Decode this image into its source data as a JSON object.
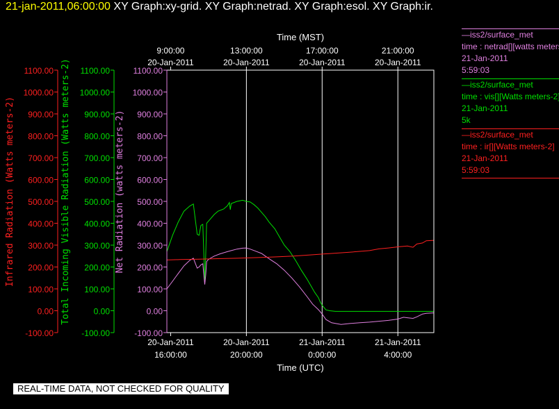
{
  "header": {
    "timestamp": "21-jan-2011,06:00:00",
    "graphs": "XY Graph:xy-grid.  XY Graph:netrad.  XY Graph:esol.  XY Graph:ir."
  },
  "quality_notice": "REAL-TIME DATA, NOT CHECKED FOR QUALITY",
  "legend": [
    {
      "station": "—iss2/surface_met",
      "var": "time : netrad[][watts meters-2]",
      "date": "21-Jan-2011",
      "time": "5:59:03",
      "color": "#e080e0"
    },
    {
      "station": "—iss2/surface_met",
      "var": "time : vis[][Watts meters-2]",
      "date": "21-Jan-2011",
      "time": "5k",
      "color": "#00e000"
    },
    {
      "station": "—iss2/surface_met",
      "var": "time : ir[][Watts meters-2]",
      "date": "21-Jan-2011",
      "time": "5:59:03",
      "color": "#ff2020"
    }
  ],
  "chart_data": {
    "type": "line",
    "x_unit": "hours UTC",
    "xlim": [
      15.8,
      29.9
    ],
    "top_axis": {
      "title": "Time (MST)",
      "ticks": [
        {
          "x": 16,
          "time": "9:00:00",
          "date": "20-Jan-2011"
        },
        {
          "x": 20,
          "time": "13:00:00",
          "date": "20-Jan-2011"
        },
        {
          "x": 24,
          "time": "17:00:00",
          "date": "20-Jan-2011"
        },
        {
          "x": 28,
          "time": "21:00:00",
          "date": "20-Jan-2011"
        }
      ]
    },
    "bottom_axis": {
      "title": "Time (UTC)",
      "ticks": [
        {
          "x": 16,
          "date": "20-Jan-2011",
          "time": "16:00:00"
        },
        {
          "x": 20,
          "date": "20-Jan-2011",
          "time": "20:00:00"
        },
        {
          "x": 24,
          "date": "21-Jan-2011",
          "time": "0:00:00"
        },
        {
          "x": 28,
          "date": "21-Jan-2011",
          "time": "4:00:00"
        }
      ]
    },
    "y_axes": [
      {
        "id": "ir",
        "label": "Infrared Radiation (Watts meters-2)",
        "color": "#ff2020",
        "ylim": [
          -100,
          1100
        ]
      },
      {
        "id": "vis",
        "label": "Total Incoming Visible Radiation (Watts meters-2)",
        "color": "#00e000",
        "ylim": [
          -100,
          1100
        ]
      },
      {
        "id": "net",
        "label": "Net Radiation (watts meters-2)",
        "color": "#e080e0",
        "ylim": [
          -100,
          1100
        ]
      }
    ],
    "y_ticks": [
      -100,
      0,
      100,
      200,
      300,
      400,
      500,
      600,
      700,
      800,
      900,
      1000,
      1100
    ],
    "y_tick_labels": [
      "-100.00",
      "0.00",
      "100.00",
      "200.00",
      "300.00",
      "400.00",
      "500.00",
      "600.00",
      "700.00",
      "800.00",
      "900.00",
      "1000.00",
      "1100.00"
    ],
    "grid_x": [
      20,
      24,
      28
    ],
    "series": [
      {
        "id": "vis",
        "color": "#00e000",
        "x": [
          15.8,
          16.1,
          16.4,
          16.7,
          17.0,
          17.2,
          17.4,
          17.5,
          17.6,
          17.7,
          17.8,
          17.85,
          17.9,
          18.0,
          18.3,
          18.5,
          18.8,
          19.0,
          19.1,
          19.15,
          19.2,
          19.5,
          19.8,
          20.0,
          20.2,
          20.4,
          20.6,
          20.8,
          21.0,
          21.2,
          21.5,
          21.8,
          22.0,
          22.3,
          22.6,
          22.9,
          23.2,
          23.4,
          23.6,
          23.8,
          23.9,
          24.0,
          24.1,
          24.2,
          24.4,
          24.7,
          25.0,
          25.5,
          26.0,
          26.5,
          27.0,
          27.5,
          28.0,
          28.5,
          29.0,
          29.5,
          29.9
        ],
        "y": [
          270,
          345,
          405,
          455,
          478,
          488,
          350,
          345,
          390,
          395,
          140,
          245,
          400,
          410,
          440,
          455,
          465,
          480,
          495,
          462,
          490,
          500,
          505,
          500,
          497,
          485,
          470,
          450,
          430,
          405,
          375,
          330,
          300,
          270,
          230,
          185,
          145,
          115,
          85,
          60,
          40,
          25,
          15,
          4,
          0,
          -3,
          -3,
          -3,
          -3,
          -3,
          -3,
          -3,
          -3,
          -3,
          -3,
          -3,
          -3
        ]
      },
      {
        "id": "net",
        "color": "#e080e0",
        "x": [
          15.8,
          16.1,
          16.4,
          16.7,
          17.0,
          17.2,
          17.4,
          17.5,
          17.6,
          17.7,
          17.8,
          17.85,
          17.9,
          18.0,
          18.3,
          18.6,
          19.0,
          19.2,
          19.5,
          19.8,
          20.0,
          20.2,
          20.5,
          20.8,
          21.0,
          21.3,
          21.6,
          22.0,
          22.4,
          22.8,
          23.2,
          23.5,
          23.8,
          24.0,
          24.2,
          24.5,
          25.0,
          25.5,
          26.0,
          26.5,
          27.0,
          27.5,
          28.0,
          28.3,
          28.5,
          28.8,
          29.0,
          29.3,
          29.5,
          29.9
        ],
        "y": [
          100,
          135,
          170,
          205,
          230,
          240,
          195,
          200,
          210,
          215,
          120,
          160,
          225,
          235,
          250,
          260,
          270,
          275,
          282,
          286,
          287,
          282,
          272,
          262,
          250,
          232,
          215,
          185,
          150,
          110,
          65,
          30,
          5,
          -15,
          -40,
          -55,
          -63,
          -58,
          -55,
          -52,
          -48,
          -44,
          -38,
          -30,
          -32,
          -35,
          -28,
          -15,
          -12,
          -10
        ]
      },
      {
        "id": "ir",
        "color": "#ff2020",
        "x": [
          15.8,
          16.5,
          17.5,
          18.5,
          19.5,
          20.5,
          21.5,
          22.5,
          23.5,
          24.0,
          24.5,
          25.5,
          26.5,
          27.0,
          27.5,
          28.0,
          28.5,
          28.8,
          29.0,
          29.3,
          29.5,
          29.9
        ],
        "y": [
          232,
          234,
          236,
          238,
          240,
          243,
          246,
          250,
          256,
          259,
          262,
          268,
          275,
          283,
          287,
          292,
          296,
          290,
          305,
          310,
          320,
          322
        ]
      }
    ]
  }
}
